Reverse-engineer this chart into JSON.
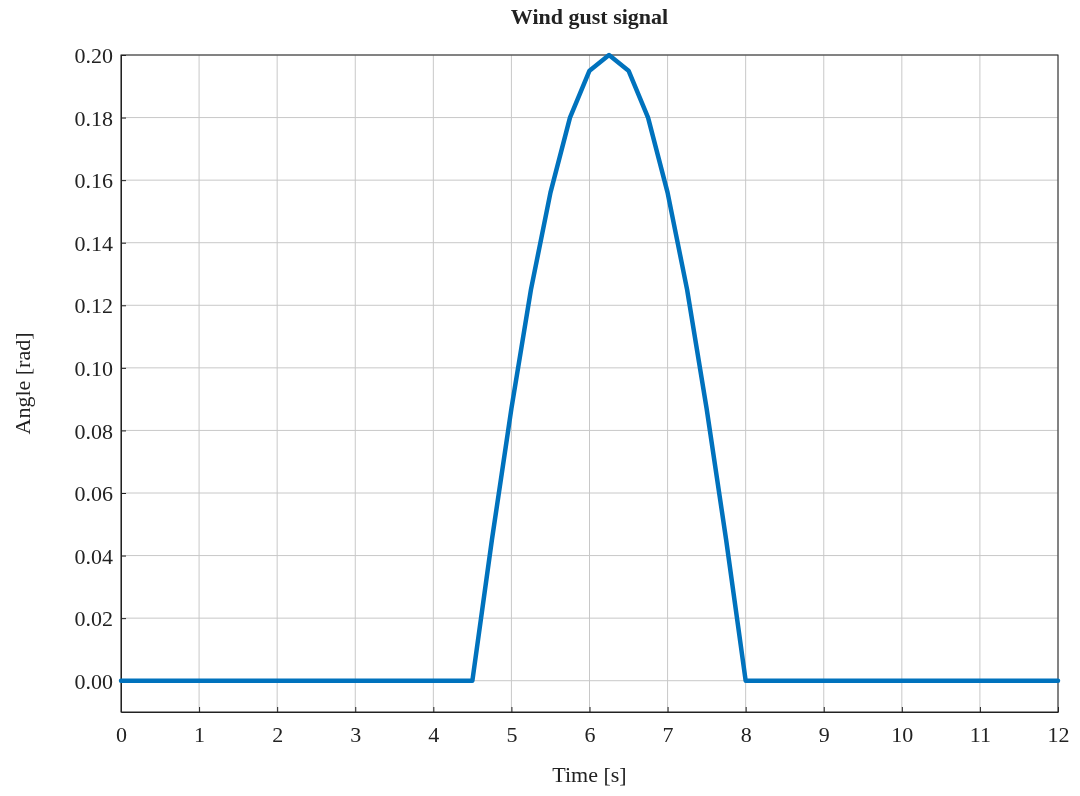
{
  "chart_data": {
    "type": "line",
    "title": "Wind gust signal",
    "xlabel": "Time [s]",
    "ylabel": "Angle [rad]",
    "x": [
      0,
      4.5,
      4.75,
      5,
      5.25,
      5.5,
      5.75,
      6,
      6.25,
      6.5,
      6.75,
      7,
      7.25,
      7.5,
      7.75,
      8,
      12
    ],
    "series": [
      {
        "color": "#0072bd",
        "values": [
          0,
          0,
          0.045,
          0.087,
          0.125,
          0.156,
          0.18,
          0.195,
          0.2,
          0.195,
          0.18,
          0.156,
          0.125,
          0.087,
          0.045,
          0,
          0
        ]
      }
    ],
    "xlim": [
      0,
      12
    ],
    "xticks": [
      0,
      1,
      2,
      3,
      4,
      5,
      6,
      7,
      8,
      9,
      10,
      11,
      12
    ],
    "ylim": [
      -0.01,
      0.2
    ],
    "yticks": [
      {
        "value": 0,
        "label": "0.00"
      },
      {
        "value": 0.02,
        "label": "0.02"
      },
      {
        "value": 0.04,
        "label": "0.04"
      },
      {
        "value": 0.06,
        "label": "0.06"
      },
      {
        "value": 0.08,
        "label": "0.08"
      },
      {
        "value": 0.1,
        "label": "0.10"
      },
      {
        "value": 0.12,
        "label": "0.12"
      },
      {
        "value": 0.14,
        "label": "0.14"
      },
      {
        "value": 0.16,
        "label": "0.16"
      },
      {
        "value": 0.18,
        "label": "0.18"
      },
      {
        "value": 0.2,
        "label": "0.20"
      }
    ],
    "grid": true,
    "line_style": "solid"
  }
}
